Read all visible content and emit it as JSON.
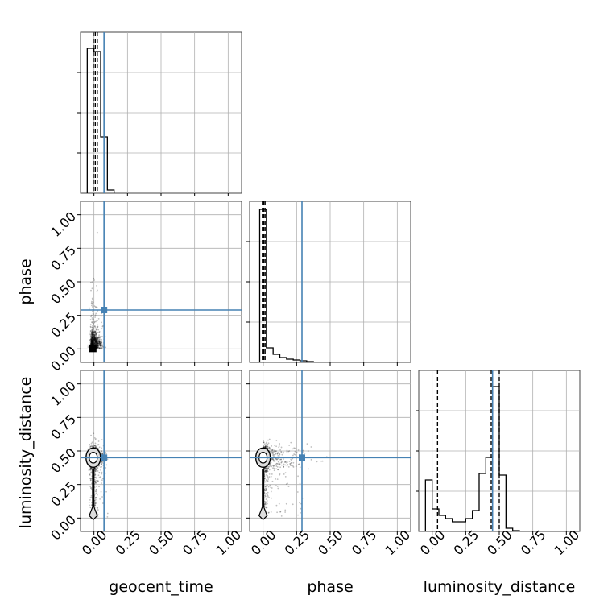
{
  "chart_data": [
    {
      "type": "histogram",
      "panel": "geocent_time",
      "xlim": [
        -0.1,
        1.1
      ],
      "xticks": [
        "0.00",
        "0.25",
        "0.50",
        "0.75",
        "1.00"
      ],
      "grid": true,
      "bins": [
        -0.05,
        0.0,
        0.05,
        0.1,
        0.15
      ],
      "counts": [
        0.9,
        0.88,
        0.35,
        0.02
      ],
      "ymax": 1.0,
      "quantiles": [
        -0.005,
        0.01,
        0.025
      ],
      "truth": 0.075
    },
    {
      "type": "histogram",
      "panel": "phase",
      "xlim": [
        -0.1,
        1.1
      ],
      "xticks": [
        "0.00",
        "0.25",
        "0.50",
        "0.75",
        "1.00"
      ],
      "grid": true,
      "bins": [
        -0.025,
        0.025,
        0.075,
        0.125,
        0.175,
        0.225,
        0.275,
        0.325,
        0.375
      ],
      "counts": [
        0.95,
        0.09,
        0.05,
        0.03,
        0.02,
        0.015,
        0.01,
        0.005
      ],
      "ymax": 1.0,
      "quantiles": [
        -0.005,
        0.005,
        0.015
      ],
      "truth": 0.29
    },
    {
      "type": "histogram",
      "panel": "luminosity_distance",
      "xlim": [
        -0.1,
        1.1
      ],
      "xticks": [
        "0.00",
        "0.25",
        "0.50",
        "0.75",
        "1.00"
      ],
      "xlabel": "luminosity_distance",
      "grid": true,
      "bins": [
        -0.05,
        0.0,
        0.05,
        0.1,
        0.15,
        0.2,
        0.25,
        0.3,
        0.35,
        0.4,
        0.45,
        0.5,
        0.55,
        0.6,
        0.65
      ],
      "counts": [
        0.32,
        0.14,
        0.1,
        0.08,
        0.06,
        0.06,
        0.08,
        0.13,
        0.36,
        0.46,
        0.9,
        0.35,
        0.02,
        0.005
      ],
      "ymax": 1.0,
      "quantiles": [
        0.04,
        0.44,
        0.5
      ],
      "truth": 0.45
    },
    {
      "type": "scatter",
      "panel": "phase vs geocent_time",
      "xlim": [
        -0.1,
        1.1
      ],
      "ylim": [
        -0.1,
        1.1
      ],
      "xticks": [
        "0.00",
        "0.25",
        "0.50",
        "0.75",
        "1.00"
      ],
      "yticks": [
        "0.00",
        "0.25",
        "0.50",
        "0.75",
        "1.00"
      ],
      "ylabel": "phase",
      "grid": true,
      "truth": {
        "x": 0.075,
        "y": 0.29
      },
      "density_center": {
        "x": -0.005,
        "y": 0.0
      }
    },
    {
      "type": "scatter",
      "panel": "luminosity_distance vs geocent_time",
      "xlim": [
        -0.1,
        1.1
      ],
      "ylim": [
        -0.1,
        1.1
      ],
      "xticks": [
        "0.00",
        "0.25",
        "0.50",
        "0.75",
        "1.00"
      ],
      "yticks": [
        "0.00",
        "0.25",
        "0.50",
        "0.75",
        "1.00"
      ],
      "xlabel": "geocent_time",
      "ylabel": "luminosity_distance",
      "grid": true,
      "truth": {
        "x": 0.075,
        "y": 0.45
      },
      "density_center": {
        "x": -0.005,
        "y": 0.45
      }
    },
    {
      "type": "scatter",
      "panel": "luminosity_distance vs phase",
      "xlim": [
        -0.1,
        1.1
      ],
      "ylim": [
        -0.1,
        1.1
      ],
      "xticks": [
        "0.00",
        "0.25",
        "0.50",
        "0.75",
        "1.00"
      ],
      "xlabel": "phase",
      "grid": true,
      "truth": {
        "x": 0.29,
        "y": 0.45
      },
      "density_center": {
        "x": 0.0,
        "y": 0.45
      }
    }
  ],
  "colors": {
    "truth": "#4682b4",
    "hist": "#000000",
    "grid": "#b0b0b0",
    "points": "#000000"
  }
}
